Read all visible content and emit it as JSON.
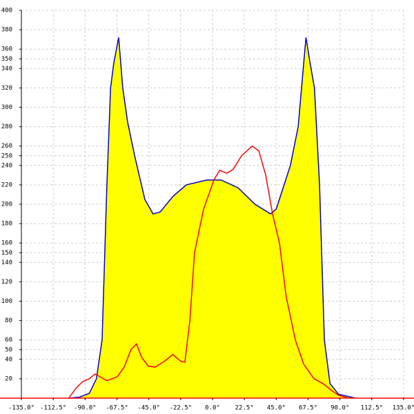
{
  "chart_data": {
    "type": "area-line",
    "xlim": [
      -135,
      135
    ],
    "ylim": [
      0,
      400
    ],
    "xticks": [
      {
        "value": -135,
        "label": "-135.0°"
      },
      {
        "value": -112.5,
        "label": "-112.5°"
      },
      {
        "value": -90,
        "label": "-90.0°"
      },
      {
        "value": -67.5,
        "label": "-67.5°"
      },
      {
        "value": -45,
        "label": "-45.0°"
      },
      {
        "value": -22.5,
        "label": "-22.5°"
      },
      {
        "value": 0,
        "label": "0.0°"
      },
      {
        "value": 22.5,
        "label": "22.5°"
      },
      {
        "value": 45,
        "label": "45.0°"
      },
      {
        "value": 67.5,
        "label": "67.5°"
      },
      {
        "value": 90,
        "label": "90.0°"
      },
      {
        "value": 112.5,
        "label": "112.5°"
      },
      {
        "value": 135,
        "label": "135.0°"
      }
    ],
    "yticks": [
      20,
      40,
      50,
      60,
      80,
      100,
      120,
      140,
      150,
      160,
      180,
      200,
      220,
      240,
      250,
      260,
      280,
      300,
      320,
      340,
      350,
      360,
      380,
      400
    ],
    "grid": true,
    "axis_color": "#ff0000",
    "series": [
      {
        "color": "#0000cc",
        "fill": "#ffff00",
        "x": [
          -101.5,
          -94,
          -87,
          -82,
          -78,
          -74.6,
          -72,
          -69.8,
          -66.3,
          -63.4,
          -60,
          -55,
          -47.8,
          -42,
          -37,
          -28,
          -18.5,
          -4,
          6,
          18,
          30,
          41,
          45,
          55,
          60.5,
          66,
          69,
          72,
          75.6,
          79,
          83,
          89,
          101
        ],
        "values": [
          0,
          1,
          5,
          20,
          60,
          220,
          320,
          345,
          372,
          320,
          285,
          250,
          205,
          190,
          192,
          208,
          220,
          225,
          225,
          217,
          200,
          190,
          195,
          240,
          280,
          372,
          345,
          320,
          220,
          60,
          15,
          4,
          0
        ]
      },
      {
        "color": "#ff0000",
        "x": [
          -101.5,
          -96.6,
          -91.7,
          -87,
          -83,
          -79.5,
          -74.6,
          -67.3,
          -62.4,
          -57.6,
          -53.7,
          -50,
          -45.4,
          -40.5,
          -34,
          -28,
          -22.4,
          -19.5,
          -16,
          -12.7,
          -6.3,
          1,
          5,
          10,
          14.6,
          20.5,
          28,
          32.7,
          37.6,
          42.4,
          47.3,
          52,
          58.5,
          64.4,
          71.7,
          78,
          84,
          89,
          96
        ],
        "values": [
          0,
          10,
          17,
          20,
          25,
          22,
          18,
          22,
          32,
          50,
          56,
          42,
          33,
          32,
          38,
          45,
          38,
          37,
          80,
          150,
          195,
          225,
          235,
          232,
          236,
          250,
          260,
          255,
          230,
          190,
          160,
          105,
          60,
          35,
          20,
          15,
          8,
          3,
          0
        ]
      }
    ]
  }
}
